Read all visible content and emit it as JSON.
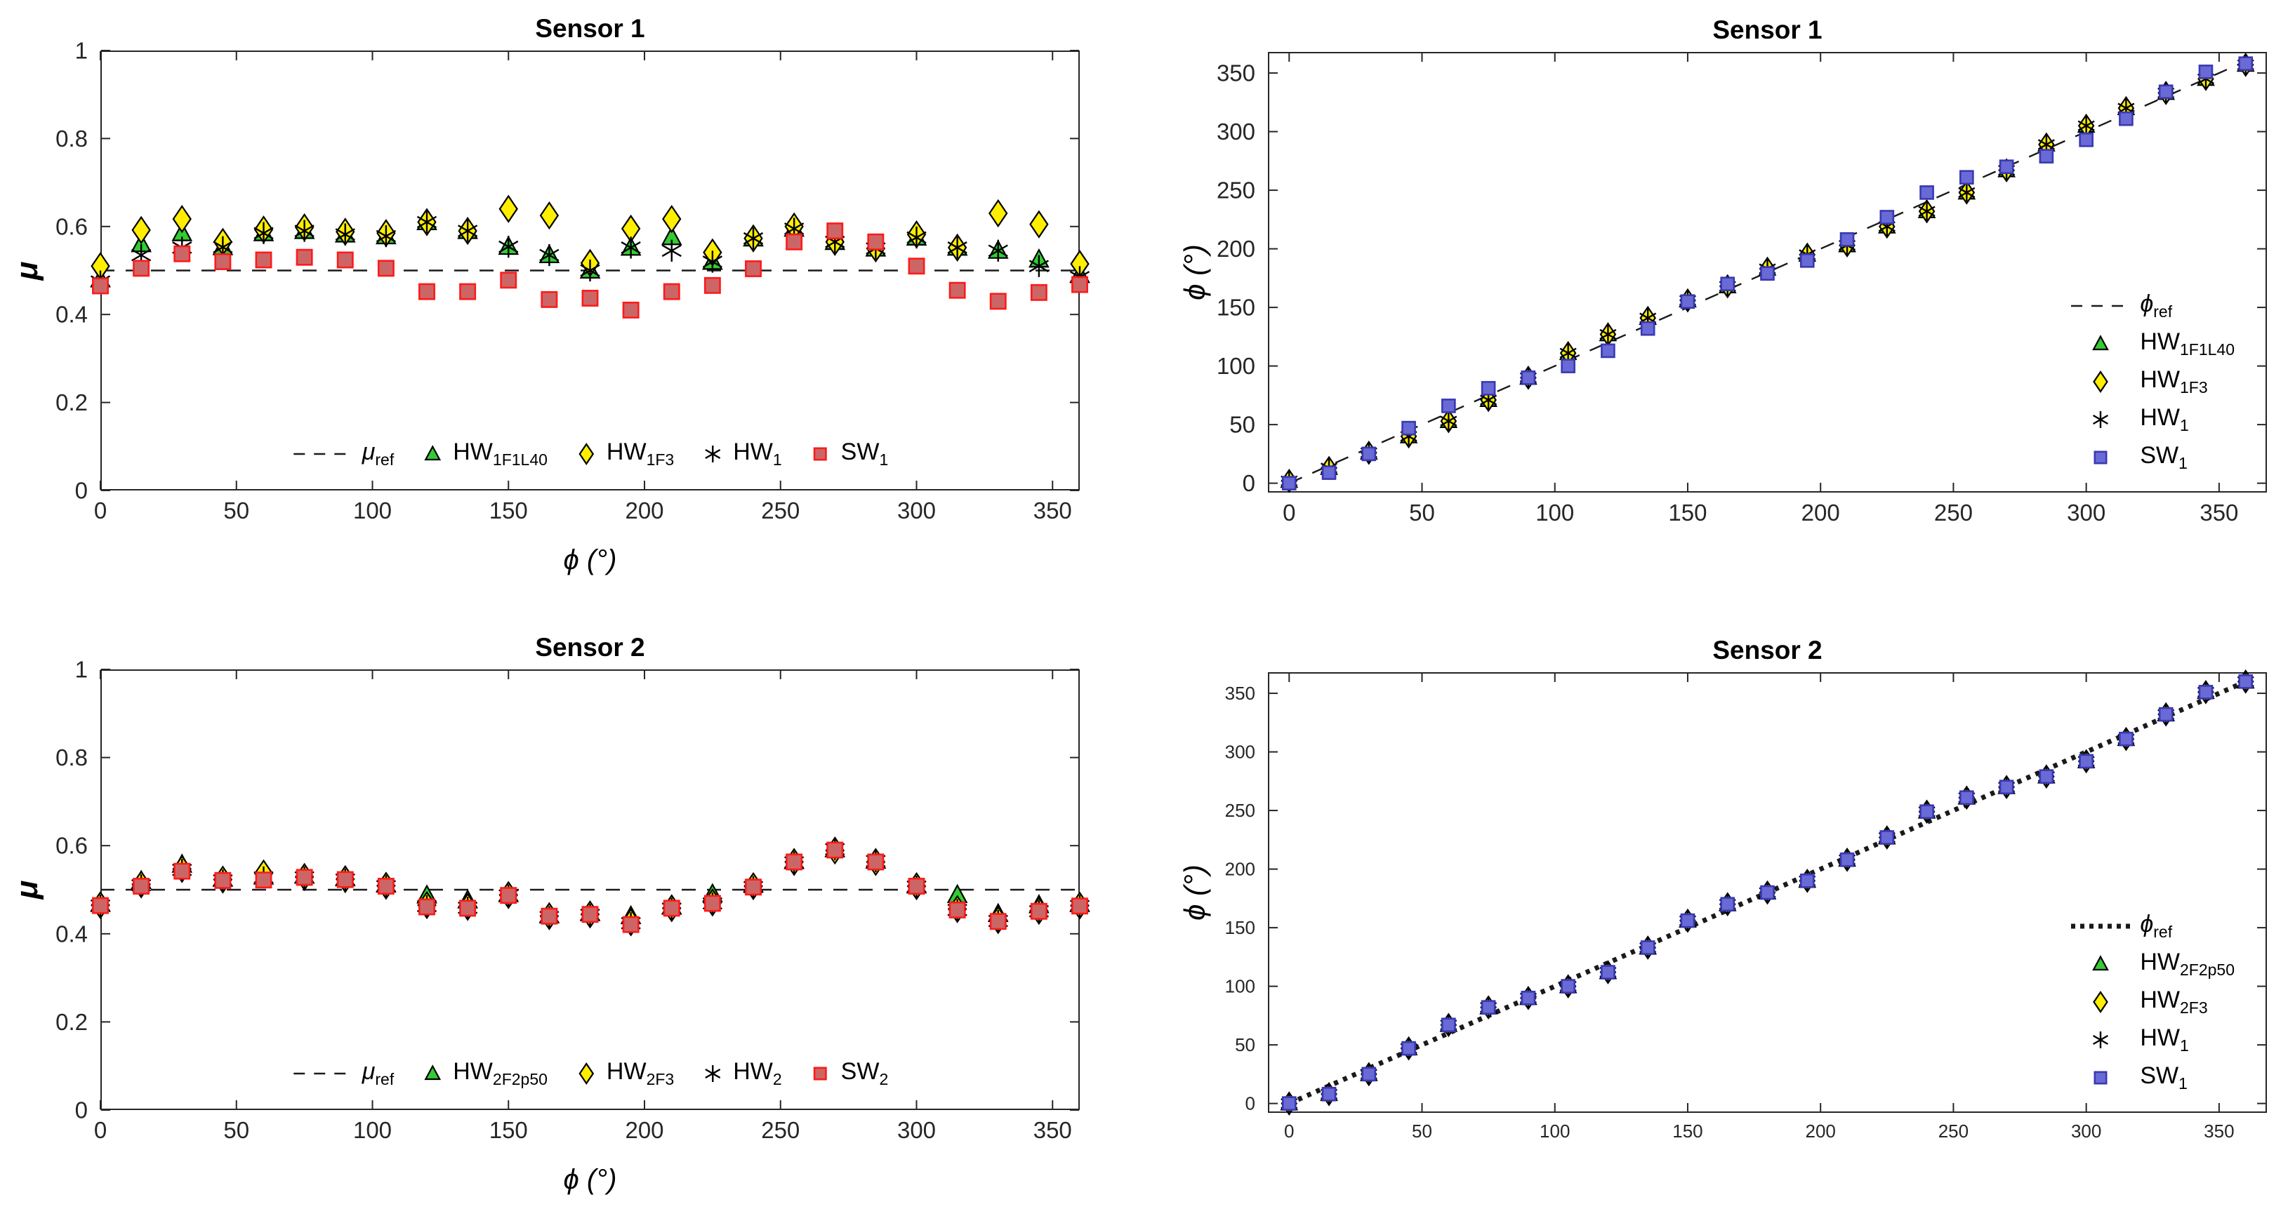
{
  "chart_data": [
    {
      "type": "scatter",
      "title": "Sensor 1",
      "xlabel": "ϕ (°)",
      "ylabel": "μ",
      "xlim": [
        0,
        360
      ],
      "ylim": [
        0,
        1
      ],
      "grid": false,
      "legend_pos": "bottom-center",
      "marker_size": 13,
      "xticks": [
        0,
        50,
        100,
        150,
        200,
        250,
        300,
        350
      ],
      "xtick_labels": [
        "0",
        "50",
        "100",
        "150",
        "200",
        "250",
        "300",
        "350"
      ],
      "yticks": [
        0,
        0.2,
        0.4,
        0.6,
        0.8,
        1
      ],
      "ytick_labels": [
        "0",
        "0.2",
        "0.4",
        "0.6",
        "0.8",
        "1"
      ],
      "x": [
        0,
        15,
        30,
        45,
        60,
        75,
        90,
        105,
        120,
        135,
        150,
        165,
        180,
        195,
        210,
        225,
        240,
        255,
        270,
        285,
        300,
        315,
        330,
        345,
        360
      ],
      "ref": {
        "name": "mu_ref",
        "label_base": "μ",
        "label_sub": "ref",
        "style": "dashed-thin",
        "y": 0.5
      },
      "series": [
        {
          "name": "HW_1F1L40",
          "label_base": "HW",
          "label_sub": "1F1L40",
          "marker": "triangle",
          "fill": "#33cc33",
          "stroke": "#000000",
          "values": [
            0.48,
            0.56,
            0.585,
            0.553,
            0.585,
            0.59,
            0.582,
            0.578,
            0.61,
            0.59,
            0.554,
            0.535,
            0.5,
            0.552,
            0.576,
            0.52,
            0.573,
            0.595,
            0.565,
            0.55,
            0.575,
            0.552,
            0.545,
            0.525,
            0.49
          ]
        },
        {
          "name": "HW_1F3",
          "label_base": "HW",
          "label_sub": "1F3",
          "marker": "diamond",
          "fill": "#ffee00",
          "stroke": "#000000",
          "values": [
            0.51,
            0.592,
            0.617,
            0.565,
            0.593,
            0.598,
            0.588,
            0.585,
            0.61,
            0.59,
            0.64,
            0.625,
            0.517,
            0.595,
            0.617,
            0.541,
            0.573,
            0.6,
            0.565,
            0.55,
            0.582,
            0.552,
            0.63,
            0.605,
            0.515
          ]
        },
        {
          "name": "HW_1",
          "label_base": "HW",
          "label_sub": "1",
          "marker": "asterisk",
          "fill": "none",
          "stroke": "#000000",
          "values": [
            0.475,
            0.535,
            0.552,
            0.553,
            0.585,
            0.59,
            0.582,
            0.578,
            0.61,
            0.59,
            0.554,
            0.535,
            0.5,
            0.552,
            0.545,
            0.52,
            0.573,
            0.595,
            0.565,
            0.55,
            0.575,
            0.552,
            0.545,
            0.51,
            0.485
          ]
        },
        {
          "name": "SW_1",
          "label_base": "SW",
          "label_sub": "1",
          "marker": "square",
          "fill": "#cc6666",
          "stroke": "#ff1a1a",
          "values": [
            0.465,
            0.505,
            0.538,
            0.52,
            0.524,
            0.53,
            0.524,
            0.505,
            0.452,
            0.452,
            0.478,
            0.434,
            0.437,
            0.41,
            0.452,
            0.466,
            0.504,
            0.565,
            0.59,
            0.565,
            0.51,
            0.455,
            0.43,
            0.45,
            0.468
          ]
        }
      ]
    },
    {
      "type": "scatter",
      "title": "Sensor 1",
      "xlabel": "",
      "ylabel": "ϕ (°)",
      "xlim": [
        -8,
        368
      ],
      "ylim": [
        -8,
        368
      ],
      "grid": false,
      "legend_pos": "right-middle",
      "marker_size": 11,
      "xticks": [
        0,
        50,
        100,
        150,
        200,
        250,
        300,
        350
      ],
      "xtick_labels": [
        "0",
        "50",
        "100",
        "150",
        "200",
        "250",
        "300",
        "350"
      ],
      "yticks": [
        0,
        50,
        100,
        150,
        200,
        250,
        300,
        350
      ],
      "ytick_labels": [
        "0",
        "50",
        "100",
        "150",
        "200",
        "250",
        "300",
        "350"
      ],
      "x": [
        0,
        15,
        30,
        45,
        60,
        75,
        90,
        105,
        120,
        135,
        150,
        165,
        180,
        195,
        210,
        225,
        240,
        255,
        270,
        285,
        300,
        315,
        330,
        345,
        360
      ],
      "ref": {
        "name": "phi_ref",
        "label_base": "ϕ",
        "label_sub": "ref",
        "style": "dashed-thin",
        "identity": true
      },
      "series": [
        {
          "name": "HW_1F1L40",
          "label_base": "HW",
          "label_sub": "1F1L40",
          "marker": "triangle",
          "fill": "#33cc33",
          "stroke": "#000000",
          "values": [
            2,
            13,
            26,
            40,
            53,
            71,
            90,
            111,
            127,
            141,
            156,
            168,
            183,
            195,
            203,
            219,
            232,
            248,
            267,
            289,
            305,
            320,
            333,
            345,
            357
          ]
        },
        {
          "name": "HW_1F3",
          "label_base": "HW",
          "label_sub": "1F3",
          "marker": "diamond",
          "fill": "#ffee00",
          "stroke": "#000000",
          "values": [
            2,
            13,
            26,
            40,
            53,
            71,
            90,
            111,
            127,
            141,
            156,
            168,
            183,
            195,
            203,
            219,
            232,
            248,
            267,
            289,
            305,
            320,
            333,
            345,
            357
          ]
        },
        {
          "name": "HW_1",
          "label_base": "HW",
          "label_sub": "1",
          "marker": "asterisk",
          "fill": "none",
          "stroke": "#000000",
          "values": [
            2,
            13,
            26,
            40,
            53,
            71,
            90,
            111,
            127,
            141,
            156,
            168,
            183,
            195,
            203,
            219,
            232,
            248,
            267,
            289,
            305,
            320,
            333,
            345,
            357
          ]
        },
        {
          "name": "SW_1",
          "label_base": "SW",
          "label_sub": "1",
          "marker": "square",
          "fill": "#6a6ad6",
          "stroke": "#3939b3",
          "values": [
            0,
            9,
            25,
            47,
            66,
            81,
            90,
            100,
            113,
            132,
            155,
            170,
            179,
            190,
            208,
            227,
            248,
            261,
            270,
            279,
            293,
            311,
            334,
            351,
            358
          ]
        }
      ]
    },
    {
      "type": "scatter",
      "title": "Sensor 2",
      "xlabel": "ϕ (°)",
      "ylabel": "μ",
      "xlim": [
        0,
        360
      ],
      "ylim": [
        0,
        1
      ],
      "grid": false,
      "legend_pos": "bottom-center",
      "marker_size": 13,
      "xticks": [
        0,
        50,
        100,
        150,
        200,
        250,
        300,
        350
      ],
      "xtick_labels": [
        "0",
        "50",
        "100",
        "150",
        "200",
        "250",
        "300",
        "350"
      ],
      "yticks": [
        0,
        0.2,
        0.4,
        0.6,
        0.8,
        1
      ],
      "ytick_labels": [
        "0",
        "0.2",
        "0.4",
        "0.6",
        "0.8",
        "1"
      ],
      "x": [
        0,
        15,
        30,
        45,
        60,
        75,
        90,
        105,
        120,
        135,
        150,
        165,
        180,
        195,
        210,
        225,
        240,
        255,
        270,
        285,
        300,
        315,
        330,
        345,
        360
      ],
      "ref": {
        "name": "mu_ref",
        "label_base": "μ",
        "label_sub": "ref",
        "style": "dashed-thin",
        "y": 0.5
      },
      "series": [
        {
          "name": "HW_2F2p50",
          "label_base": "HW",
          "label_sub": "2F2p50",
          "marker": "triangle",
          "fill": "#33cc33",
          "stroke": "#000000",
          "values": [
            0.468,
            0.52,
            0.557,
            0.525,
            0.53,
            0.532,
            0.526,
            0.512,
            0.487,
            0.476,
            0.49,
            0.442,
            0.447,
            0.44,
            0.462,
            0.49,
            0.512,
            0.565,
            0.592,
            0.566,
            0.51,
            0.488,
            0.445,
            0.465,
            0.468
          ]
        },
        {
          "name": "HW_2F3",
          "label_base": "HW",
          "label_sub": "2F3",
          "marker": "diamond",
          "fill": "#ffee00",
          "stroke": "#000000",
          "values": [
            0.465,
            0.512,
            0.547,
            0.523,
            0.537,
            0.529,
            0.524,
            0.509,
            0.465,
            0.461,
            0.488,
            0.44,
            0.444,
            0.426,
            0.458,
            0.471,
            0.508,
            0.563,
            0.589,
            0.563,
            0.508,
            0.456,
            0.431,
            0.452,
            0.464
          ]
        },
        {
          "name": "HW_2",
          "label_base": "HW",
          "label_sub": "2",
          "marker": "asterisk",
          "fill": "none",
          "stroke": "#000000",
          "values": [
            0.464,
            0.51,
            0.545,
            0.521,
            0.528,
            0.528,
            0.523,
            0.508,
            0.463,
            0.459,
            0.487,
            0.438,
            0.443,
            0.424,
            0.457,
            0.469,
            0.506,
            0.562,
            0.592,
            0.565,
            0.507,
            0.454,
            0.429,
            0.451,
            0.463
          ]
        },
        {
          "name": "SW_2",
          "label_base": "SW",
          "label_sub": "2",
          "marker": "square",
          "fill": "#cc6666",
          "stroke": "#ff1a1a",
          "values": [
            0.464,
            0.508,
            0.542,
            0.521,
            0.522,
            0.528,
            0.523,
            0.508,
            0.461,
            0.458,
            0.487,
            0.44,
            0.444,
            0.421,
            0.458,
            0.469,
            0.506,
            0.563,
            0.59,
            0.563,
            0.508,
            0.454,
            0.428,
            0.451,
            0.463
          ]
        }
      ]
    },
    {
      "type": "scatter",
      "title": "Sensor 2",
      "xlabel": "",
      "ylabel": "ϕ (°)",
      "xlim": [
        -8,
        368
      ],
      "ylim": [
        -8,
        368
      ],
      "grid": false,
      "legend_pos": "right-middle",
      "marker_size": 11,
      "xticks": [
        0,
        50,
        100,
        150,
        200,
        250,
        300,
        350
      ],
      "xtick_labels": [
        "0",
        "50",
        "100",
        "150",
        "200",
        "250",
        "300",
        "350"
      ],
      "yticks": [
        0,
        50,
        100,
        150,
        200,
        250,
        300,
        350
      ],
      "ytick_labels": [
        "0",
        "50",
        "100",
        "150",
        "200",
        "250",
        "300",
        "350"
      ],
      "x": [
        0,
        15,
        30,
        45,
        60,
        75,
        90,
        105,
        120,
        135,
        150,
        165,
        180,
        195,
        210,
        225,
        240,
        255,
        270,
        285,
        300,
        315,
        330,
        345,
        360
      ],
      "ref": {
        "name": "phi_ref",
        "label_base": "ϕ",
        "label_sub": "ref",
        "style": "dotted-thick",
        "identity": true
      },
      "series": [
        {
          "name": "HW_2F2p50",
          "label_base": "HW",
          "label_sub": "2F2p50",
          "marker": "triangle",
          "fill": "#33cc33",
          "stroke": "#000000",
          "values": [
            0,
            8,
            25,
            47,
            67,
            82,
            90,
            100,
            112,
            133,
            156,
            170,
            180,
            190,
            208,
            227,
            249,
            261,
            270,
            279,
            292,
            311,
            332,
            351,
            360
          ]
        },
        {
          "name": "HW_2F3",
          "label_base": "HW",
          "label_sub": "2F3",
          "marker": "diamond",
          "fill": "#ffee00",
          "stroke": "#000000",
          "values": [
            0,
            8,
            25,
            47,
            67,
            82,
            90,
            100,
            112,
            133,
            156,
            170,
            180,
            190,
            208,
            227,
            249,
            261,
            270,
            279,
            292,
            311,
            332,
            351,
            360
          ]
        },
        {
          "name": "HW_1",
          "label_base": "HW",
          "label_sub": "1",
          "marker": "asterisk",
          "fill": "none",
          "stroke": "#000000",
          "values": [
            0,
            8,
            25,
            47,
            67,
            82,
            90,
            100,
            112,
            133,
            156,
            170,
            180,
            190,
            208,
            227,
            249,
            261,
            270,
            279,
            292,
            311,
            332,
            351,
            360
          ]
        },
        {
          "name": "SW_1",
          "label_base": "SW",
          "label_sub": "1",
          "marker": "square",
          "fill": "#6a6ad6",
          "stroke": "#3939b3",
          "values": [
            0,
            8,
            25,
            47,
            67,
            82,
            90,
            100,
            112,
            133,
            156,
            170,
            180,
            190,
            208,
            227,
            249,
            261,
            270,
            279,
            292,
            311,
            332,
            351,
            360
          ]
        }
      ]
    }
  ],
  "style": {
    "axis_color": "#262626",
    "ref_color": "#1a1a1a",
    "background": "#ffffff"
  }
}
